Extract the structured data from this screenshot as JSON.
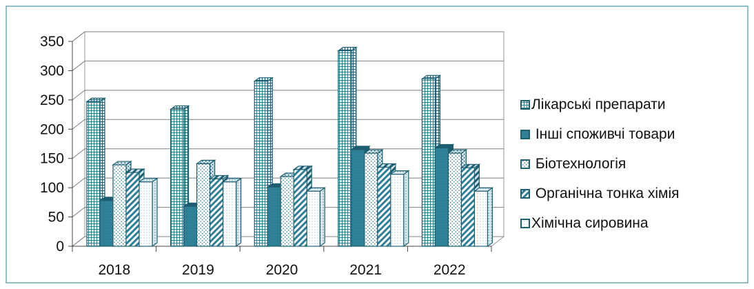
{
  "chart_data": {
    "type": "bar",
    "title": "",
    "xlabel": "",
    "ylabel": "",
    "categories": [
      "2018",
      "2019",
      "2020",
      "2021",
      "2022"
    ],
    "ylim": [
      0,
      350
    ],
    "yticks": [
      0,
      50,
      100,
      150,
      200,
      250,
      300,
      350
    ],
    "grid": true,
    "legend": "right",
    "series": [
      {
        "name": "Лікарські препарати",
        "values": [
          247,
          234,
          282,
          334,
          286
        ],
        "pattern": "grid-plaid"
      },
      {
        "name": " Інші споживчі товари",
        "values": [
          78,
          68,
          101,
          165,
          168
        ],
        "pattern": "solid-teal"
      },
      {
        "name": " Біотехнологія",
        "values": [
          139,
          141,
          119,
          159,
          159
        ],
        "pattern": "dots"
      },
      {
        "name": " Органічна тонка хімія",
        "values": [
          126,
          115,
          131,
          135,
          134
        ],
        "pattern": "diagonal-stripes"
      },
      {
        "name": "Хімічна сировина",
        "values": [
          110,
          110,
          94,
          123,
          94
        ],
        "pattern": "fine-dots"
      }
    ]
  },
  "colors": {
    "outline": "#1f5f72",
    "teal": "#2e7f96",
    "teal_dark": "#1d5d70",
    "gridline": "#808080",
    "frame_border": "#6fa8b5"
  }
}
